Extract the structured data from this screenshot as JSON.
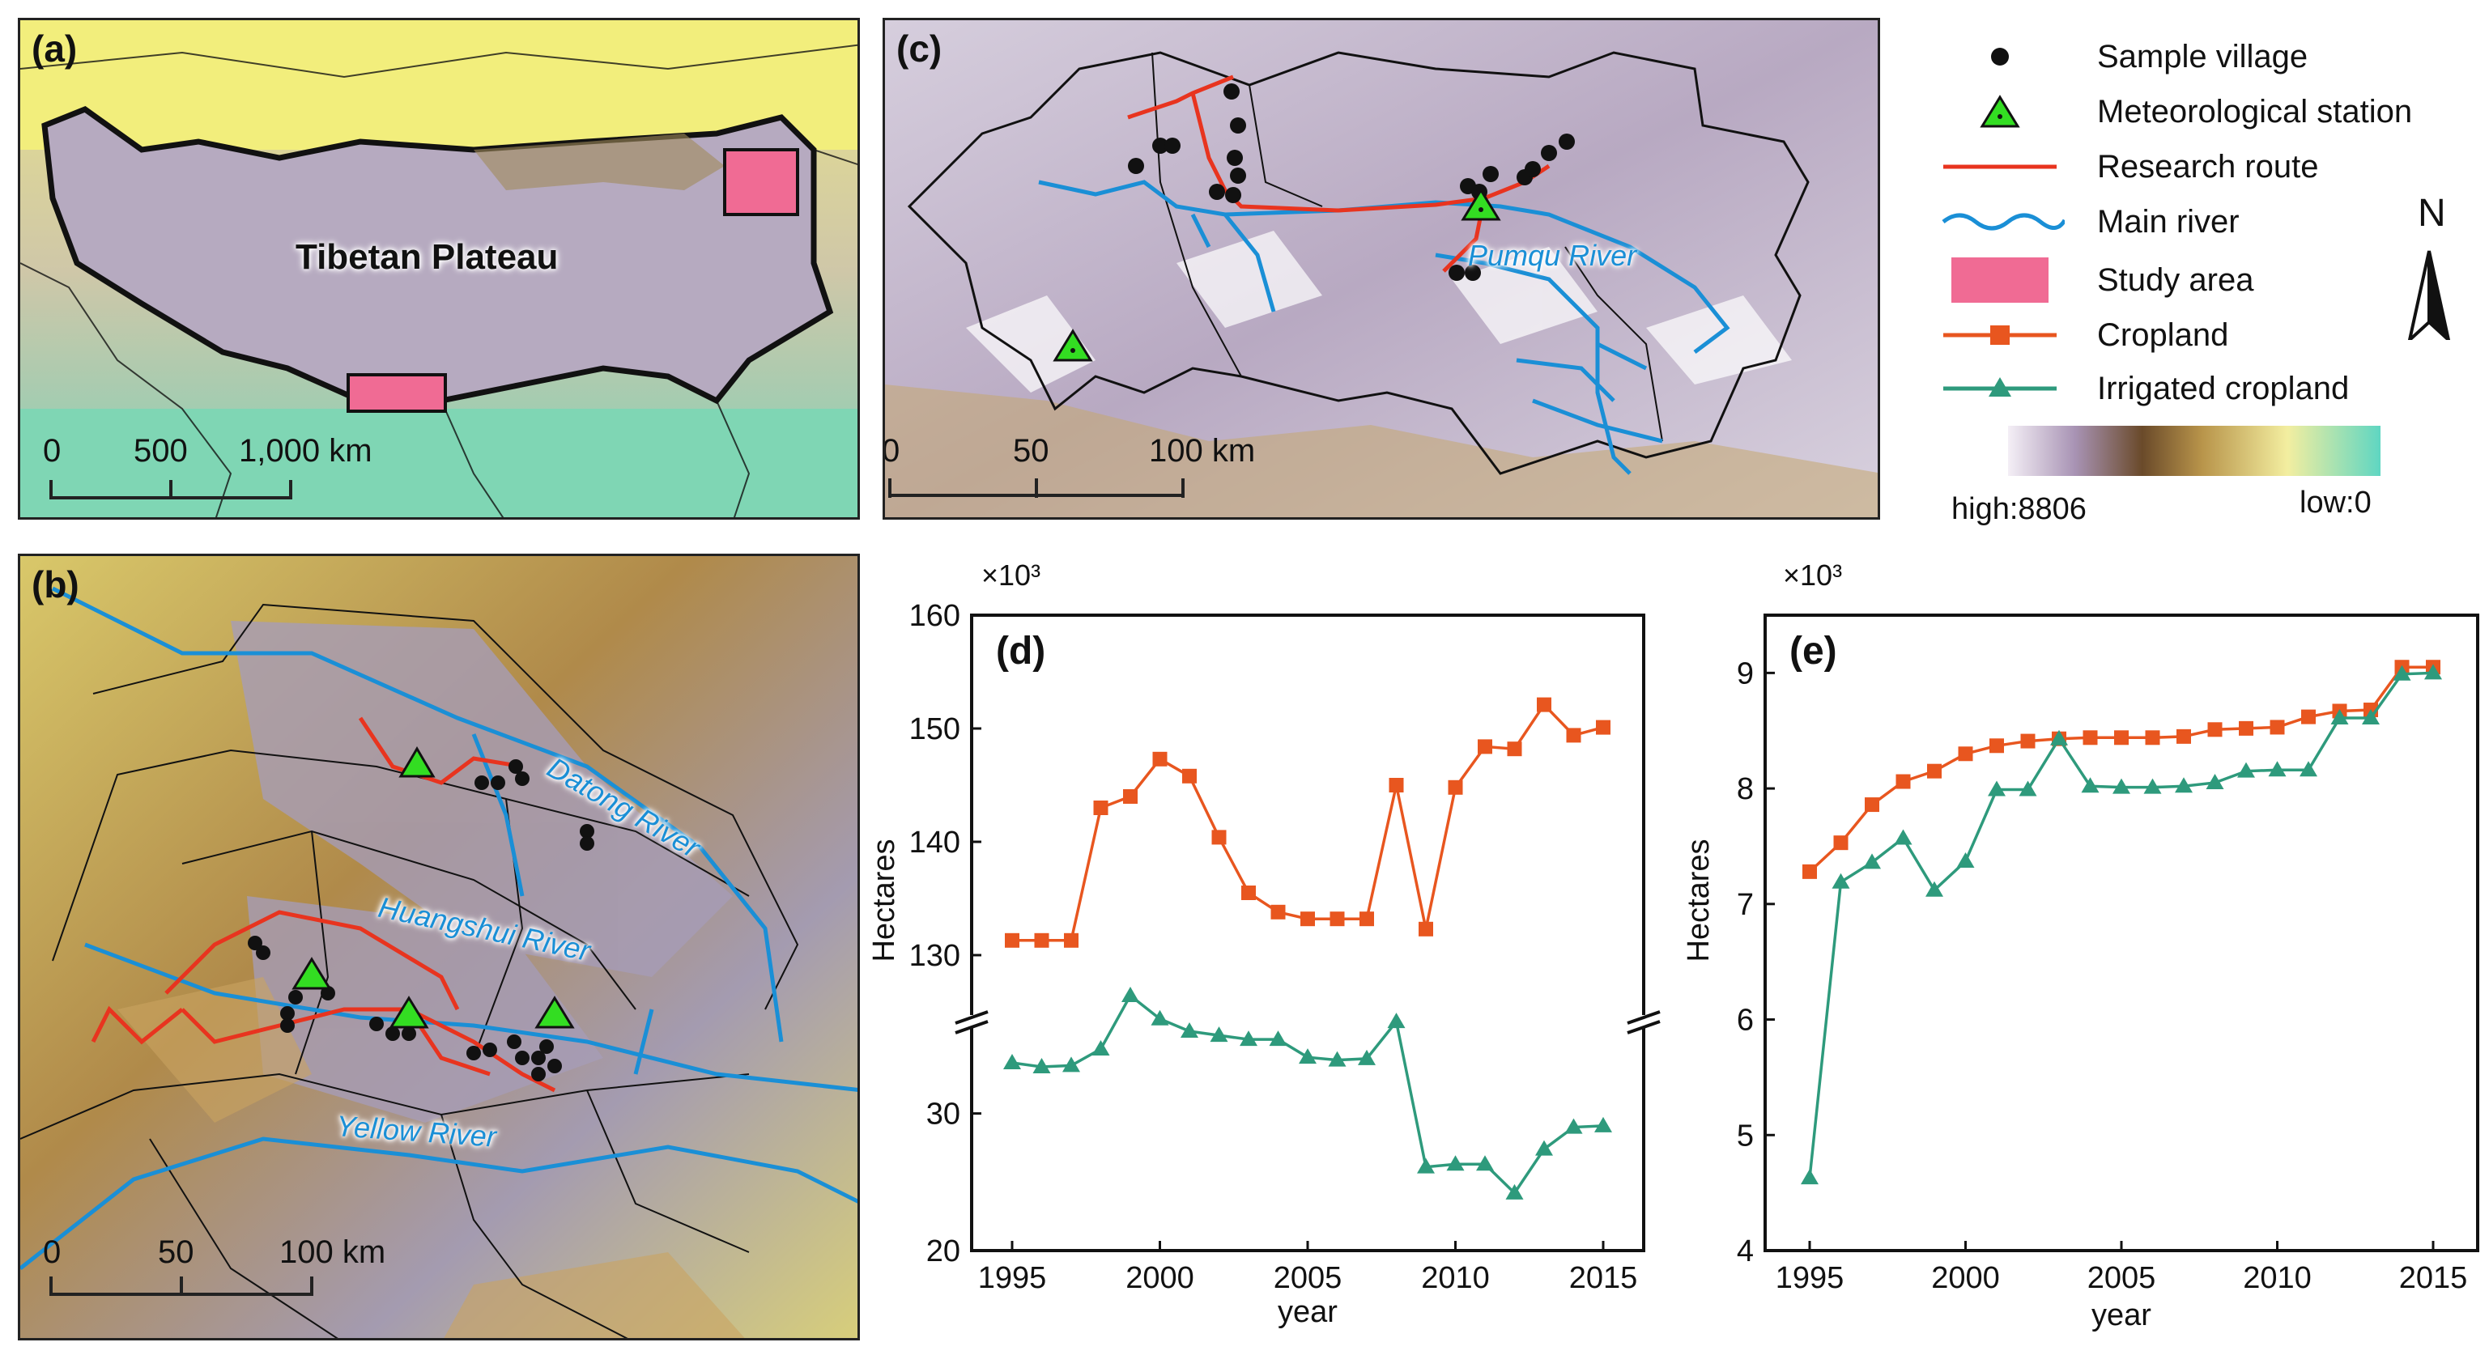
{
  "panels": {
    "a": {
      "label": "(a)",
      "title": "Tibetan Plateau",
      "scale_ticks": [
        "0",
        "500",
        "1,000 km"
      ]
    },
    "b": {
      "label": "(b)",
      "scale_ticks": [
        "0",
        "50",
        "100 km"
      ],
      "rivers": [
        "Datong River",
        "Huangshui River",
        "Yellow River"
      ]
    },
    "c": {
      "label": "(c)",
      "scale_ticks": [
        "0",
        "50",
        "100 km"
      ],
      "rivers": [
        "Pumqu River"
      ]
    },
    "d": {
      "label": "(d)"
    },
    "e": {
      "label": "(e)"
    }
  },
  "legend": {
    "items": [
      {
        "key": "sample_village",
        "label": "Sample village",
        "icon": "black-dot-icon"
      },
      {
        "key": "met_station",
        "label": "Meteorological station",
        "icon": "green-triangle-icon"
      },
      {
        "key": "research_route",
        "label": "Research route",
        "icon": "red-line-icon"
      },
      {
        "key": "main_river",
        "label": "Main river",
        "icon": "blue-wavy-line-icon"
      },
      {
        "key": "study_area",
        "label": "Study area",
        "icon": "pink-rectangle-icon"
      },
      {
        "key": "cropland",
        "label": "Cropland",
        "icon": "orange-square-line-icon"
      },
      {
        "key": "irrigated",
        "label": "Irrigated cropland",
        "icon": "green-triangle-line-icon"
      }
    ],
    "north_label": "N",
    "elevation": {
      "high": "high:8806",
      "low": "low:0"
    }
  },
  "colors": {
    "cropland": "#e8561f",
    "irrigated": "#2e9a7c",
    "river": "#1a8fd6",
    "route": "#e8341f",
    "study_area": "#f06b94",
    "met_station": "#33dd22"
  },
  "chart_data": [
    {
      "id": "d",
      "type": "line",
      "title": "(d)",
      "xlabel": "year",
      "ylabel": "Hectares",
      "y_multiplier": "×10³",
      "broken_axis": true,
      "x": [
        1995,
        1996,
        1997,
        1998,
        1999,
        2000,
        2001,
        2002,
        2003,
        2004,
        2005,
        2006,
        2007,
        2008,
        2009,
        2010,
        2011,
        2012,
        2013,
        2014,
        2015
      ],
      "x_ticks": [
        "1995",
        "2000",
        "2005",
        "2010",
        "2015"
      ],
      "upper_ylim": [
        125,
        160
      ],
      "upper_yticks": [
        "130",
        "140",
        "150",
        "160"
      ],
      "lower_ylim": [
        20,
        36
      ],
      "lower_yticks": [
        "20",
        "30"
      ],
      "series": [
        {
          "name": "Cropland",
          "values": [
            131.3,
            131.3,
            131.3,
            143,
            144,
            147.3,
            145.8,
            140.4,
            135.5,
            133.8,
            133.2,
            133.2,
            133.2,
            145,
            132.3,
            144.8,
            148.4,
            148.2,
            152.1,
            149.4,
            150.1
          ]
        },
        {
          "name": "Irrigated cropland",
          "values": [
            33.7,
            33.4,
            33.5,
            34.7,
            38.6,
            36.9,
            36,
            35.7,
            35.4,
            35.4,
            34.1,
            33.9,
            34,
            36.7,
            26.1,
            26.3,
            26.3,
            24.2,
            27.4,
            29,
            29.1
          ]
        }
      ]
    },
    {
      "id": "e",
      "type": "line",
      "title": "(e)",
      "xlabel": "year",
      "ylabel": "Hectares",
      "y_multiplier": "×10³",
      "x": [
        1995,
        1996,
        1997,
        1998,
        1999,
        2000,
        2001,
        2002,
        2003,
        2004,
        2005,
        2006,
        2007,
        2008,
        2009,
        2010,
        2011,
        2012,
        2013,
        2014,
        2015
      ],
      "x_ticks": [
        "1995",
        "2000",
        "2005",
        "2010",
        "2015"
      ],
      "ylim": [
        4,
        9.5
      ],
      "yticks": [
        "4",
        "5",
        "6",
        "7",
        "8",
        "9"
      ],
      "series": [
        {
          "name": "Cropland",
          "values": [
            7.28,
            7.53,
            7.86,
            8.06,
            8.15,
            8.3,
            8.37,
            8.41,
            8.43,
            8.44,
            8.44,
            8.44,
            8.45,
            8.51,
            8.52,
            8.53,
            8.62,
            8.67,
            8.68,
            9.05,
            9.05
          ]
        },
        {
          "name": "Irrigated cropland",
          "values": [
            4.63,
            7.19,
            7.36,
            7.57,
            7.12,
            7.37,
            7.99,
            7.99,
            8.43,
            8.02,
            8.01,
            8.01,
            8.02,
            8.05,
            8.15,
            8.16,
            8.16,
            8.61,
            8.61,
            8.99,
            9.0
          ]
        }
      ]
    }
  ]
}
